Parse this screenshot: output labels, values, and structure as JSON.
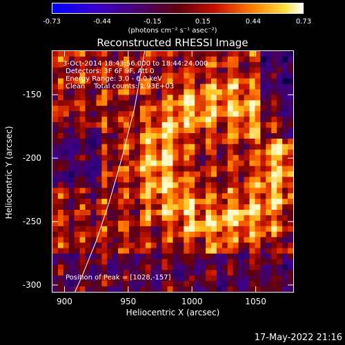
{
  "colorbar": {
    "min": -0.73,
    "max": 0.73,
    "tick_labels": [
      "-0.73",
      "-0.44",
      "-0.15",
      "0.15",
      "0.44",
      "0.73"
    ],
    "units_label": "(photons cm⁻² s⁻¹ asec⁻²)"
  },
  "chart_data": {
    "type": "heatmap",
    "title": "Reconstructed RHESSI Image",
    "xlabel": "Heliocentric X (arcsec)",
    "ylabel": "Heliocentric Y (arcsec)",
    "xlim": [
      890,
      1080
    ],
    "ylim": [
      -306,
      -115
    ],
    "x_ticks": [
      900,
      950,
      1000,
      1050
    ],
    "y_ticks": [
      -150,
      -200,
      -250,
      -300
    ],
    "x_tick_labels": [
      "900",
      "950",
      "1000",
      "1050"
    ],
    "y_tick_labels": [
      "-150",
      "-200",
      "-250",
      "-300"
    ],
    "colormap": "fire (blue-purple to red-yellow-white)",
    "value_range": [
      -0.73,
      0.73
    ],
    "peak": [
      1028,
      -157
    ],
    "limb_curve": {
      "x": [
        908,
        915,
        925,
        935,
        945,
        955,
        963
      ],
      "y": [
        -306,
        -290,
        -265,
        -235,
        -200,
        -160,
        -115
      ]
    }
  },
  "annotations": {
    "time_range": "3-Oct-2014 18:43:56.000 to 18:44:24.000",
    "detectors": "Detectors: 3F 6F 9F, Att 0",
    "energy_range": "Energy Range: 3.0 - 6.0 keV",
    "clean_counts": "Clean    Total counts: 1.93E+03",
    "peak_position": "Position of Peak = [1028,-157]"
  },
  "footer": {
    "date": "17-May-2022 21:16"
  }
}
